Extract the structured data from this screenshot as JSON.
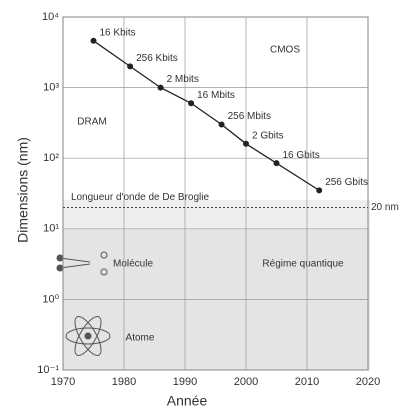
{
  "chart_data": {
    "type": "scatter",
    "xlabel": "Année",
    "ylabel": "Dimensions (nm)",
    "xlim": [
      1970,
      2020
    ],
    "xticks": [
      1970,
      1980,
      1990,
      2000,
      2010,
      2020
    ],
    "ylim": [
      0.1,
      10000
    ],
    "log_y": true,
    "yticks": [
      {
        "value": 0.1,
        "label": "10⁻¹"
      },
      {
        "value": 1,
        "label": "10⁰"
      },
      {
        "value": 10,
        "label": "10¹"
      },
      {
        "value": 100,
        "label": "10²"
      },
      {
        "value": 1000,
        "label": "10³"
      },
      {
        "value": 10000,
        "label": "10⁴"
      }
    ],
    "grid": true,
    "series": [
      {
        "name": "DRAM",
        "color": "#222222",
        "x": [
          1975,
          1981,
          1986,
          1991,
          1996,
          2000,
          2005,
          2012
        ],
        "values": [
          4600,
          2000,
          1000,
          600,
          300,
          160,
          85,
          35
        ],
        "labels": [
          "16 Kbits",
          "256 Kbits",
          "2 Mbits",
          "16 Mbits",
          "256 Mbits",
          "2 Gbits",
          "16 Gbits",
          "256 Gbits"
        ]
      }
    ],
    "reference_line": {
      "value": 20,
      "label": "20 nm",
      "name": "Longueur d'onde de De Broglie"
    },
    "annotations": [
      "CMOS",
      "DRAM",
      "Molécule",
      "Régime quantique",
      "Atome"
    ]
  }
}
